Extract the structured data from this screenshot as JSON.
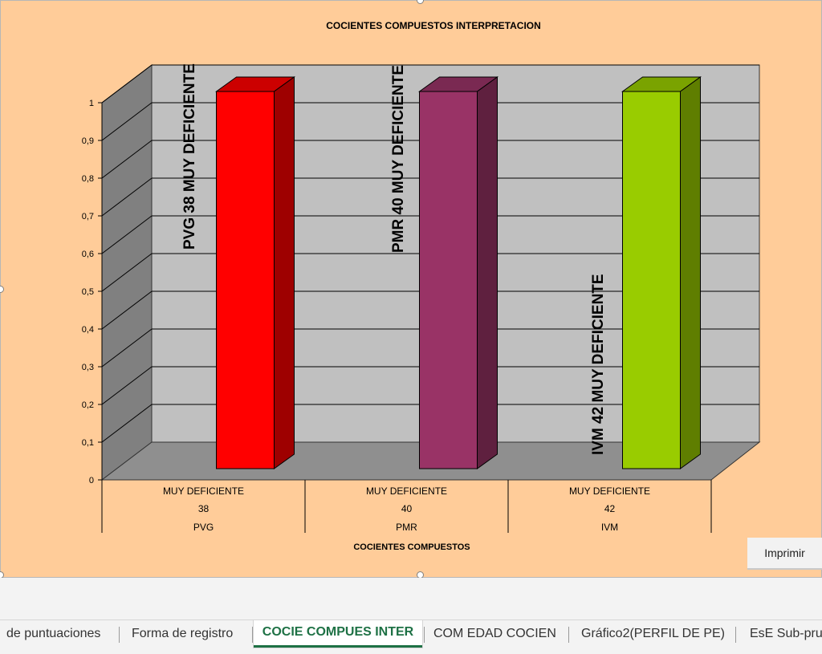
{
  "chart_data": {
    "type": "bar",
    "title": "COCIENTES COMPUESTOS INTERPRETACION",
    "xlabel": "COCIENTES COMPUESTOS",
    "ylabel": "",
    "ylim": [
      0,
      1
    ],
    "yticks": [
      "0",
      "0,1",
      "0,2",
      "0,3",
      "0,4",
      "0,5",
      "0,6",
      "0,7",
      "0,8",
      "0,9",
      "1"
    ],
    "category_levels": [
      [
        "MUY DEFICIENTE",
        "MUY DEFICIENTE",
        "MUY DEFICIENTE"
      ],
      [
        "38",
        "40",
        "42"
      ],
      [
        "PVG",
        "PMR",
        "IVM"
      ]
    ],
    "values": [
      1,
      1,
      1
    ],
    "data_labels": [
      "PVG 38 MUY DEFICIENTE",
      "PMR 40 MUY DEFICIENTE",
      "IVM 42 MUY DEFICIENTE"
    ],
    "colors": [
      "#ff0000",
      "#993366",
      "#99cc00"
    ],
    "grid": true,
    "style": "3d-column"
  },
  "buttons": {
    "print_label": "Imprimir"
  },
  "sheet_tabs": [
    "de puntuaciones",
    "Forma de registro",
    "COCIE COMPUES INTER",
    "COM EDAD COCIEN",
    "Gráfico2(PERFIL DE PE)",
    "EsE Sub-pru"
  ],
  "active_tab": 2
}
